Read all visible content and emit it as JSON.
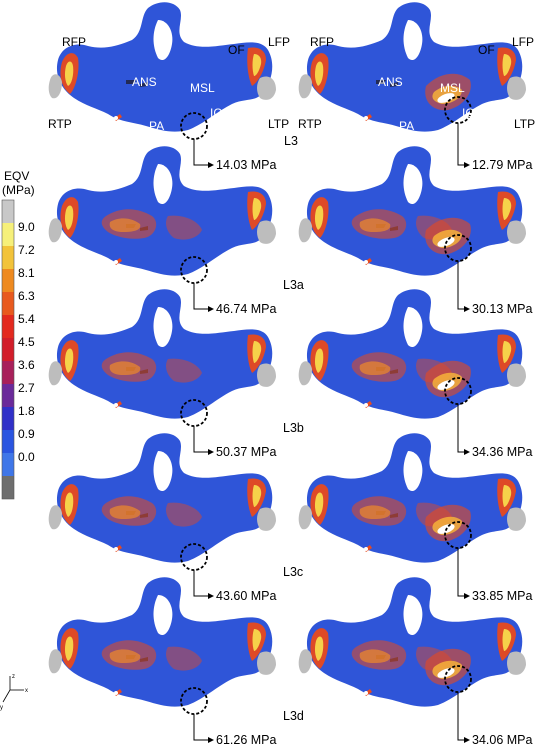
{
  "legend": {
    "title_line1": "EQV",
    "title_line2": "(MPa)",
    "ticks": [
      "9.0",
      "7.2",
      "8.1",
      "6.3",
      "5.4",
      "4.5",
      "3.6",
      "2.7",
      "1.8",
      "0.9",
      "0.0"
    ],
    "bands": [
      "#c8c8c8",
      "#f6f07a",
      "#f2c33a",
      "#ee8a20",
      "#e85a1f",
      "#e32a1f",
      "#d21e2a",
      "#a8205a",
      "#6a2a9a",
      "#3030c8",
      "#2a55e0",
      "#3f76e8",
      "#6e6e6e"
    ]
  },
  "anatomy_labels": {
    "RFP": "RFP",
    "LFP": "LFP",
    "OF": "OF",
    "ANS": "ANS",
    "MSL": "MSL",
    "RTP": "RTP",
    "LTP": "LTP",
    "IC": "IC",
    "PA": "PA"
  },
  "rows": [
    {
      "name": "L3",
      "left_value": "14.03 MPa",
      "right_value": "12.79 MPa"
    },
    {
      "name": "L3a",
      "left_value": "46.74 MPa",
      "right_value": "30.13 MPa"
    },
    {
      "name": "L3b",
      "left_value": "50.37 MPa",
      "right_value": "34.36 MPa"
    },
    {
      "name": "L3c",
      "left_value": "43.60 MPa",
      "right_value": "33.85 MPa"
    },
    {
      "name": "L3d",
      "left_value": "61.26 MPa",
      "right_value": "34.06 MPa"
    }
  ],
  "axes_triad": {
    "z": "z",
    "x": "x",
    "y": "y"
  },
  "colors": {
    "base": "#2f55d8",
    "hot": "#e84a1e",
    "warm": "#f08a2a",
    "gray": "#bdbdbd",
    "dark": "#3a3a3a"
  }
}
